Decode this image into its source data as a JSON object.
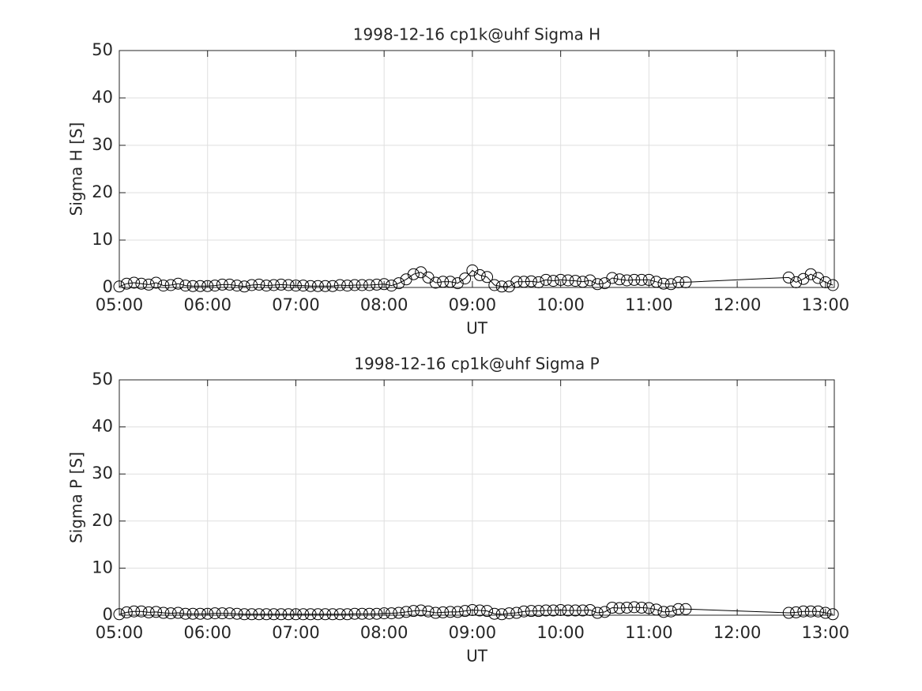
{
  "chart_data": [
    {
      "type": "line",
      "title": "1998-12-16  cp1k@uhf Sigma H",
      "xlabel": "UT",
      "ylabel": "Sigma H [S]",
      "color": "#000000",
      "marker": "o",
      "grid": true,
      "x": [
        300,
        305,
        310,
        315,
        320,
        325,
        330,
        335,
        340,
        345,
        350,
        355,
        360,
        365,
        370,
        375,
        380,
        385,
        390,
        395,
        400,
        405,
        410,
        415,
        420,
        425,
        430,
        435,
        440,
        445,
        450,
        455,
        460,
        465,
        470,
        475,
        480,
        485,
        490,
        495,
        500,
        505,
        510,
        515,
        520,
        525,
        530,
        535,
        540,
        545,
        550,
        555,
        560,
        565,
        570,
        575,
        580,
        585,
        590,
        595,
        600,
        605,
        610,
        615,
        620,
        625,
        630,
        635,
        640,
        645,
        650,
        655,
        660,
        665,
        670,
        675,
        680,
        685,
        755,
        760,
        765,
        770,
        775,
        780,
        785
      ],
      "values": [
        0.2,
        0.8,
        1.0,
        0.8,
        0.6,
        1.0,
        0.4,
        0.5,
        0.8,
        0.4,
        0.3,
        0.3,
        0.3,
        0.4,
        0.6,
        0.6,
        0.4,
        0.2,
        0.5,
        0.6,
        0.4,
        0.5,
        0.6,
        0.5,
        0.4,
        0.4,
        0.3,
        0.3,
        0.3,
        0.3,
        0.5,
        0.4,
        0.5,
        0.5,
        0.5,
        0.6,
        0.7,
        0.4,
        0.9,
        1.7,
        2.8,
        3.2,
        2.1,
        1.0,
        1.2,
        1.2,
        0.9,
        1.9,
        3.6,
        2.6,
        2.2,
        0.5,
        0.2,
        0.2,
        1.2,
        1.2,
        1.3,
        1.1,
        1.6,
        1.4,
        1.6,
        1.5,
        1.4,
        1.2,
        1.5,
        0.7,
        0.9,
        2.0,
        1.7,
        1.5,
        1.6,
        1.6,
        1.6,
        1.2,
        0.8,
        0.7,
        1.1,
        1.1,
        2.1,
        1.1,
        1.8,
        2.8,
        2.0,
        1.1,
        0.5
      ],
      "xlim": [
        300,
        786
      ],
      "xticks": [
        {
          "value": 300,
          "label": "05:00"
        },
        {
          "value": 360,
          "label": "06:00"
        },
        {
          "value": 420,
          "label": "07:00"
        },
        {
          "value": 480,
          "label": "08:00"
        },
        {
          "value": 540,
          "label": "09:00"
        },
        {
          "value": 600,
          "label": "10:00"
        },
        {
          "value": 660,
          "label": "11:00"
        },
        {
          "value": 720,
          "label": "12:00"
        },
        {
          "value": 780,
          "label": "13:00"
        }
      ],
      "ylim": [
        0,
        50
      ],
      "yticks": [
        0,
        10,
        20,
        30,
        40,
        50
      ]
    },
    {
      "type": "line",
      "title": "1998-12-16  cp1k@uhf Sigma P",
      "xlabel": "UT",
      "ylabel": "Sigma P [S]",
      "color": "#000000",
      "marker": "o",
      "grid": true,
      "x": [
        300,
        305,
        310,
        315,
        320,
        325,
        330,
        335,
        340,
        345,
        350,
        355,
        360,
        365,
        370,
        375,
        380,
        385,
        390,
        395,
        400,
        405,
        410,
        415,
        420,
        425,
        430,
        435,
        440,
        445,
        450,
        455,
        460,
        465,
        470,
        475,
        480,
        485,
        490,
        495,
        500,
        505,
        510,
        515,
        520,
        525,
        530,
        535,
        540,
        545,
        550,
        555,
        560,
        565,
        570,
        575,
        580,
        585,
        590,
        595,
        600,
        605,
        610,
        615,
        620,
        625,
        630,
        635,
        640,
        645,
        650,
        655,
        660,
        665,
        670,
        675,
        680,
        685,
        755,
        760,
        765,
        770,
        775,
        780,
        785
      ],
      "values": [
        0.2,
        0.6,
        0.8,
        0.8,
        0.6,
        0.7,
        0.5,
        0.4,
        0.5,
        0.3,
        0.3,
        0.3,
        0.3,
        0.4,
        0.4,
        0.4,
        0.3,
        0.2,
        0.2,
        0.2,
        0.2,
        0.2,
        0.2,
        0.2,
        0.2,
        0.2,
        0.2,
        0.2,
        0.2,
        0.2,
        0.2,
        0.2,
        0.3,
        0.3,
        0.3,
        0.3,
        0.4,
        0.4,
        0.5,
        0.7,
        0.9,
        1.0,
        0.8,
        0.5,
        0.6,
        0.7,
        0.7,
        0.9,
        1.1,
        1.0,
        0.9,
        0.3,
        0.2,
        0.4,
        0.5,
        0.8,
        0.9,
        0.9,
        1.0,
        1.0,
        1.1,
        1.0,
        1.0,
        1.0,
        1.1,
        0.5,
        0.7,
        1.6,
        1.5,
        1.6,
        1.7,
        1.6,
        1.5,
        1.2,
        0.7,
        0.8,
        1.3,
        1.3,
        0.5,
        0.6,
        0.8,
        0.8,
        0.8,
        0.5,
        0.2
      ],
      "xlim": [
        300,
        786
      ],
      "xticks": [
        {
          "value": 300,
          "label": "05:00"
        },
        {
          "value": 360,
          "label": "06:00"
        },
        {
          "value": 420,
          "label": "07:00"
        },
        {
          "value": 480,
          "label": "08:00"
        },
        {
          "value": 540,
          "label": "09:00"
        },
        {
          "value": 600,
          "label": "10:00"
        },
        {
          "value": 660,
          "label": "11:00"
        },
        {
          "value": 720,
          "label": "12:00"
        },
        {
          "value": 780,
          "label": "13:00"
        }
      ],
      "ylim": [
        0,
        50
      ],
      "yticks": [
        0,
        10,
        20,
        30,
        40,
        50
      ]
    }
  ]
}
